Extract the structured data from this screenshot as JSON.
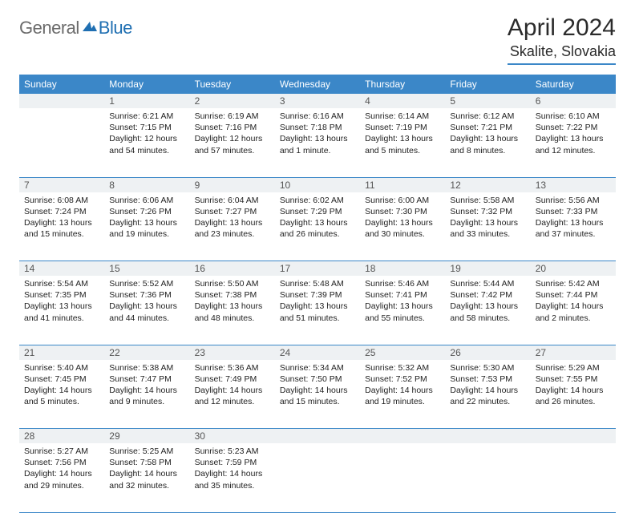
{
  "logo": {
    "text1": "General",
    "text2": "Blue"
  },
  "title": "April 2024",
  "location": "Skalite, Slovakia",
  "colors": {
    "header_bg": "#3b87c8",
    "header_text": "#ffffff",
    "daynum_bg": "#eef1f3",
    "border": "#3b87c8",
    "logo_gray": "#6b6b6b",
    "logo_blue": "#1f6fb2"
  },
  "weekdays": [
    "Sunday",
    "Monday",
    "Tuesday",
    "Wednesday",
    "Thursday",
    "Friday",
    "Saturday"
  ],
  "weeks": [
    {
      "nums": [
        "",
        "1",
        "2",
        "3",
        "4",
        "5",
        "6"
      ],
      "cells": [
        null,
        {
          "sunrise": "6:21 AM",
          "sunset": "7:15 PM",
          "daylight": "12 hours and 54 minutes."
        },
        {
          "sunrise": "6:19 AM",
          "sunset": "7:16 PM",
          "daylight": "12 hours and 57 minutes."
        },
        {
          "sunrise": "6:16 AM",
          "sunset": "7:18 PM",
          "daylight": "13 hours and 1 minute."
        },
        {
          "sunrise": "6:14 AM",
          "sunset": "7:19 PM",
          "daylight": "13 hours and 5 minutes."
        },
        {
          "sunrise": "6:12 AM",
          "sunset": "7:21 PM",
          "daylight": "13 hours and 8 minutes."
        },
        {
          "sunrise": "6:10 AM",
          "sunset": "7:22 PM",
          "daylight": "13 hours and 12 minutes."
        }
      ]
    },
    {
      "nums": [
        "7",
        "8",
        "9",
        "10",
        "11",
        "12",
        "13"
      ],
      "cells": [
        {
          "sunrise": "6:08 AM",
          "sunset": "7:24 PM",
          "daylight": "13 hours and 15 minutes."
        },
        {
          "sunrise": "6:06 AM",
          "sunset": "7:26 PM",
          "daylight": "13 hours and 19 minutes."
        },
        {
          "sunrise": "6:04 AM",
          "sunset": "7:27 PM",
          "daylight": "13 hours and 23 minutes."
        },
        {
          "sunrise": "6:02 AM",
          "sunset": "7:29 PM",
          "daylight": "13 hours and 26 minutes."
        },
        {
          "sunrise": "6:00 AM",
          "sunset": "7:30 PM",
          "daylight": "13 hours and 30 minutes."
        },
        {
          "sunrise": "5:58 AM",
          "sunset": "7:32 PM",
          "daylight": "13 hours and 33 minutes."
        },
        {
          "sunrise": "5:56 AM",
          "sunset": "7:33 PM",
          "daylight": "13 hours and 37 minutes."
        }
      ]
    },
    {
      "nums": [
        "14",
        "15",
        "16",
        "17",
        "18",
        "19",
        "20"
      ],
      "cells": [
        {
          "sunrise": "5:54 AM",
          "sunset": "7:35 PM",
          "daylight": "13 hours and 41 minutes."
        },
        {
          "sunrise": "5:52 AM",
          "sunset": "7:36 PM",
          "daylight": "13 hours and 44 minutes."
        },
        {
          "sunrise": "5:50 AM",
          "sunset": "7:38 PM",
          "daylight": "13 hours and 48 minutes."
        },
        {
          "sunrise": "5:48 AM",
          "sunset": "7:39 PM",
          "daylight": "13 hours and 51 minutes."
        },
        {
          "sunrise": "5:46 AM",
          "sunset": "7:41 PM",
          "daylight": "13 hours and 55 minutes."
        },
        {
          "sunrise": "5:44 AM",
          "sunset": "7:42 PM",
          "daylight": "13 hours and 58 minutes."
        },
        {
          "sunrise": "5:42 AM",
          "sunset": "7:44 PM",
          "daylight": "14 hours and 2 minutes."
        }
      ]
    },
    {
      "nums": [
        "21",
        "22",
        "23",
        "24",
        "25",
        "26",
        "27"
      ],
      "cells": [
        {
          "sunrise": "5:40 AM",
          "sunset": "7:45 PM",
          "daylight": "14 hours and 5 minutes."
        },
        {
          "sunrise": "5:38 AM",
          "sunset": "7:47 PM",
          "daylight": "14 hours and 9 minutes."
        },
        {
          "sunrise": "5:36 AM",
          "sunset": "7:49 PM",
          "daylight": "14 hours and 12 minutes."
        },
        {
          "sunrise": "5:34 AM",
          "sunset": "7:50 PM",
          "daylight": "14 hours and 15 minutes."
        },
        {
          "sunrise": "5:32 AM",
          "sunset": "7:52 PM",
          "daylight": "14 hours and 19 minutes."
        },
        {
          "sunrise": "5:30 AM",
          "sunset": "7:53 PM",
          "daylight": "14 hours and 22 minutes."
        },
        {
          "sunrise": "5:29 AM",
          "sunset": "7:55 PM",
          "daylight": "14 hours and 26 minutes."
        }
      ]
    },
    {
      "nums": [
        "28",
        "29",
        "30",
        "",
        "",
        "",
        ""
      ],
      "cells": [
        {
          "sunrise": "5:27 AM",
          "sunset": "7:56 PM",
          "daylight": "14 hours and 29 minutes."
        },
        {
          "sunrise": "5:25 AM",
          "sunset": "7:58 PM",
          "daylight": "14 hours and 32 minutes."
        },
        {
          "sunrise": "5:23 AM",
          "sunset": "7:59 PM",
          "daylight": "14 hours and 35 minutes."
        },
        null,
        null,
        null,
        null
      ]
    }
  ],
  "labels": {
    "sunrise": "Sunrise:",
    "sunset": "Sunset:",
    "daylight": "Daylight:"
  }
}
